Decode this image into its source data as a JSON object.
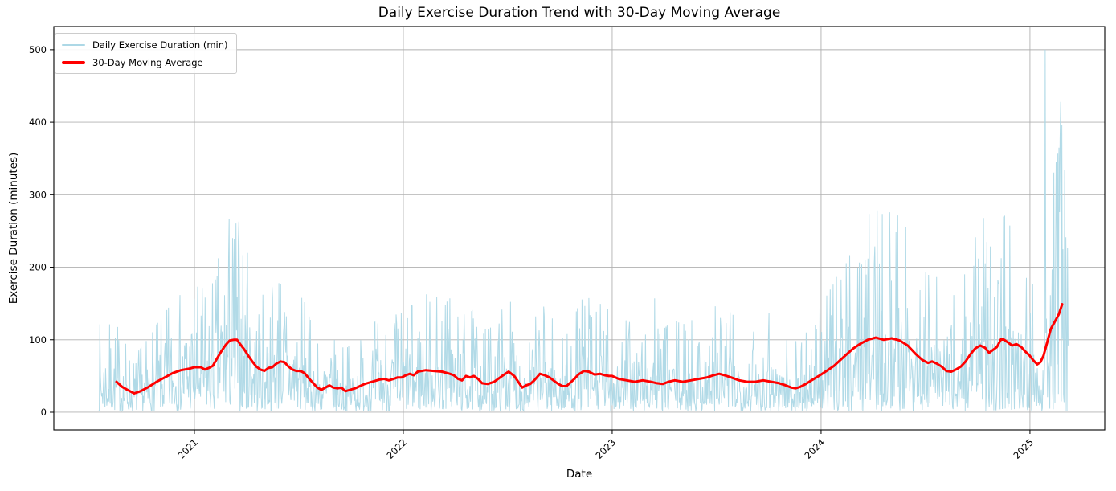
{
  "chart_data": {
    "type": "line",
    "title": "Daily Exercise Duration Trend with 30-Day Moving Average",
    "xlabel": "Date",
    "ylabel": "Exercise Duration (minutes)",
    "grid": true,
    "x_unit": "decimal_year",
    "xlim": [
      2020.327,
      2025.358
    ],
    "ylim": [
      -24.4,
      532
    ],
    "x_ticks": [
      {
        "value": 2021,
        "label": "2021"
      },
      {
        "value": 2022,
        "label": "2022"
      },
      {
        "value": 2023,
        "label": "2023"
      },
      {
        "value": 2024,
        "label": "2024"
      },
      {
        "value": 2025,
        "label": "2025"
      }
    ],
    "y_ticks": [
      {
        "value": 0,
        "label": "0"
      },
      {
        "value": 100,
        "label": "100"
      },
      {
        "value": 200,
        "label": "200"
      },
      {
        "value": 300,
        "label": "300"
      },
      {
        "value": 400,
        "label": "400"
      },
      {
        "value": 500,
        "label": "500"
      }
    ],
    "colors": {
      "daily": "#ADD8E6",
      "moving_average": "#FF0000",
      "grid": "#B0B0B0",
      "spine": "#000000",
      "text": "#000000",
      "legend_border": "#CCCCCC"
    },
    "legend": {
      "position": "upper left",
      "entries": [
        {
          "label": "Daily Exercise Duration (min)",
          "color": "#ADD8E6"
        },
        {
          "label": "30-Day Moving Average",
          "color": "#FF0000"
        }
      ]
    },
    "series": [
      {
        "name": "Daily Exercise Duration (min)",
        "render": "noisy_daily_around_moving_average",
        "color": "#ADD8E6",
        "linewidth": 1,
        "start": 2020.542,
        "end": 2025.185,
        "step_days": 1,
        "noise": {
          "kind": "exponential",
          "seed": 7,
          "clamp_min": 2,
          "clamp_max_factor": 2.6,
          "clamp_max_pad": 12
        },
        "spikes": [
          [
            2021.108,
            188
          ],
          [
            2021.25,
            167
          ],
          [
            2021.404,
            178
          ],
          [
            2022.223,
            157
          ],
          [
            2023.204,
            157
          ],
          [
            2023.75,
            137
          ],
          [
            2024.096,
            183
          ],
          [
            2024.215,
            190
          ],
          [
            2024.254,
            205
          ],
          [
            2024.331,
            192
          ],
          [
            2024.754,
            212
          ],
          [
            2024.777,
            268
          ],
          [
            2024.812,
            198
          ],
          [
            2024.85,
            178
          ],
          [
            2025.073,
            500
          ],
          [
            2025.146,
            428
          ]
        ]
      },
      {
        "name": "30-Day Moving Average",
        "render": "line",
        "color": "#FF0000",
        "linewidth": 3,
        "points": [
          [
            2020.627,
            42
          ],
          [
            2020.654,
            35
          ],
          [
            2020.685,
            30
          ],
          [
            2020.712,
            26
          ],
          [
            2020.742,
            29
          ],
          [
            2020.781,
            35
          ],
          [
            2020.819,
            42
          ],
          [
            2020.858,
            48
          ],
          [
            2020.896,
            54
          ],
          [
            2020.935,
            58
          ],
          [
            2020.973,
            60
          ],
          [
            2021.0,
            62
          ],
          [
            2021.031,
            62
          ],
          [
            2021.05,
            59
          ],
          [
            2021.069,
            61
          ],
          [
            2021.088,
            64
          ],
          [
            2021.112,
            76
          ],
          [
            2021.131,
            85
          ],
          [
            2021.15,
            93
          ],
          [
            2021.169,
            99
          ],
          [
            2021.188,
            100
          ],
          [
            2021.204,
            100
          ],
          [
            2021.219,
            94
          ],
          [
            2021.238,
            87
          ],
          [
            2021.258,
            78
          ],
          [
            2021.277,
            70
          ],
          [
            2021.296,
            63
          ],
          [
            2021.315,
            59
          ],
          [
            2021.335,
            57
          ],
          [
            2021.354,
            61
          ],
          [
            2021.373,
            62
          ],
          [
            2021.392,
            67
          ],
          [
            2021.412,
            70
          ],
          [
            2021.431,
            69
          ],
          [
            2021.45,
            63
          ],
          [
            2021.469,
            59
          ],
          [
            2021.488,
            57
          ],
          [
            2021.508,
            57
          ],
          [
            2021.527,
            54
          ],
          [
            2021.55,
            46
          ],
          [
            2021.569,
            40
          ],
          [
            2021.588,
            34
          ],
          [
            2021.608,
            31
          ],
          [
            2021.627,
            34
          ],
          [
            2021.646,
            37
          ],
          [
            2021.665,
            34
          ],
          [
            2021.685,
            33
          ],
          [
            2021.704,
            34
          ],
          [
            2021.723,
            29
          ],
          [
            2021.746,
            31
          ],
          [
            2021.769,
            33
          ],
          [
            2021.792,
            36
          ],
          [
            2021.815,
            39
          ],
          [
            2021.838,
            41
          ],
          [
            2021.862,
            43
          ],
          [
            2021.885,
            45
          ],
          [
            2021.908,
            46
          ],
          [
            2021.931,
            44
          ],
          [
            2021.954,
            46
          ],
          [
            2021.973,
            48
          ],
          [
            2021.992,
            48
          ],
          [
            2022.012,
            51
          ],
          [
            2022.031,
            53
          ],
          [
            2022.05,
            51
          ],
          [
            2022.069,
            56
          ],
          [
            2022.108,
            58
          ],
          [
            2022.146,
            57
          ],
          [
            2022.185,
            56
          ],
          [
            2022.223,
            53
          ],
          [
            2022.242,
            51
          ],
          [
            2022.262,
            46
          ],
          [
            2022.281,
            44
          ],
          [
            2022.3,
            50
          ],
          [
            2022.319,
            48
          ],
          [
            2022.338,
            50
          ],
          [
            2022.358,
            46
          ],
          [
            2022.377,
            40
          ],
          [
            2022.404,
            39
          ],
          [
            2022.435,
            42
          ],
          [
            2022.473,
            50
          ],
          [
            2022.504,
            56
          ],
          [
            2022.531,
            50
          ],
          [
            2022.55,
            42
          ],
          [
            2022.569,
            34
          ],
          [
            2022.588,
            37
          ],
          [
            2022.608,
            39
          ],
          [
            2022.627,
            44
          ],
          [
            2022.654,
            53
          ],
          [
            2022.677,
            51
          ],
          [
            2022.7,
            48
          ],
          [
            2022.723,
            43
          ],
          [
            2022.742,
            39
          ],
          [
            2022.762,
            36
          ],
          [
            2022.781,
            36
          ],
          [
            2022.8,
            41
          ],
          [
            2022.819,
            46
          ],
          [
            2022.838,
            52
          ],
          [
            2022.865,
            57
          ],
          [
            2022.888,
            56
          ],
          [
            2022.915,
            52
          ],
          [
            2022.942,
            53
          ],
          [
            2022.965,
            51
          ],
          [
            2022.985,
            50
          ],
          [
            2023.0,
            50
          ],
          [
            2023.031,
            46
          ],
          [
            2023.069,
            44
          ],
          [
            2023.108,
            42
          ],
          [
            2023.146,
            44
          ],
          [
            2023.185,
            42
          ],
          [
            2023.215,
            40
          ],
          [
            2023.242,
            39
          ],
          [
            2023.269,
            42
          ],
          [
            2023.3,
            44
          ],
          [
            2023.338,
            42
          ],
          [
            2023.377,
            44
          ],
          [
            2023.415,
            46
          ],
          [
            2023.454,
            48
          ],
          [
            2023.485,
            51
          ],
          [
            2023.512,
            53
          ],
          [
            2023.538,
            51
          ],
          [
            2023.569,
            48
          ],
          [
            2023.608,
            44
          ],
          [
            2023.646,
            42
          ],
          [
            2023.685,
            42
          ],
          [
            2023.723,
            44
          ],
          [
            2023.762,
            42
          ],
          [
            2023.8,
            40
          ],
          [
            2023.831,
            37
          ],
          [
            2023.858,
            34
          ],
          [
            2023.877,
            33
          ],
          [
            2023.9,
            35
          ],
          [
            2023.927,
            39
          ],
          [
            2023.954,
            44
          ],
          [
            2023.977,
            48
          ],
          [
            2024.0,
            52
          ],
          [
            2024.031,
            58
          ],
          [
            2024.062,
            64
          ],
          [
            2024.092,
            72
          ],
          [
            2024.123,
            80
          ],
          [
            2024.154,
            88
          ],
          [
            2024.185,
            94
          ],
          [
            2024.223,
            100
          ],
          [
            2024.262,
            103
          ],
          [
            2024.3,
            100
          ],
          [
            2024.338,
            102
          ],
          [
            2024.377,
            99
          ],
          [
            2024.415,
            92
          ],
          [
            2024.454,
            80
          ],
          [
            2024.485,
            72
          ],
          [
            2024.512,
            68
          ],
          [
            2024.531,
            70
          ],
          [
            2024.554,
            67
          ],
          [
            2024.577,
            63
          ],
          [
            2024.6,
            57
          ],
          [
            2024.623,
            56
          ],
          [
            2024.646,
            59
          ],
          [
            2024.669,
            63
          ],
          [
            2024.692,
            70
          ],
          [
            2024.715,
            80
          ],
          [
            2024.738,
            88
          ],
          [
            2024.762,
            92
          ],
          [
            2024.785,
            89
          ],
          [
            2024.804,
            82
          ],
          [
            2024.823,
            86
          ],
          [
            2024.842,
            90
          ],
          [
            2024.862,
            101
          ],
          [
            2024.877,
            100
          ],
          [
            2024.896,
            96
          ],
          [
            2024.915,
            92
          ],
          [
            2024.935,
            94
          ],
          [
            2024.958,
            90
          ],
          [
            2024.977,
            84
          ],
          [
            2024.996,
            79
          ],
          [
            2025.015,
            72
          ],
          [
            2025.035,
            66
          ],
          [
            2025.05,
            69
          ],
          [
            2025.065,
            78
          ],
          [
            2025.081,
            95
          ],
          [
            2025.1,
            115
          ],
          [
            2025.119,
            125
          ],
          [
            2025.138,
            135
          ],
          [
            2025.154,
            149
          ]
        ]
      }
    ]
  }
}
